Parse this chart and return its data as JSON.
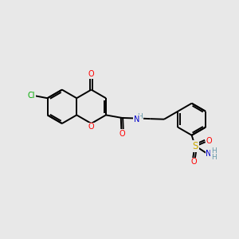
{
  "bg_color": "#e8e8e8",
  "bond_color": "#000000",
  "atom_colors": {
    "O": "#ff0000",
    "N": "#0000cc",
    "Cl": "#00aa00",
    "S": "#ccaa00",
    "C": "#000000",
    "H": "#6699aa"
  },
  "lw": 1.4,
  "fs": 7.0,
  "sep": 0.075
}
